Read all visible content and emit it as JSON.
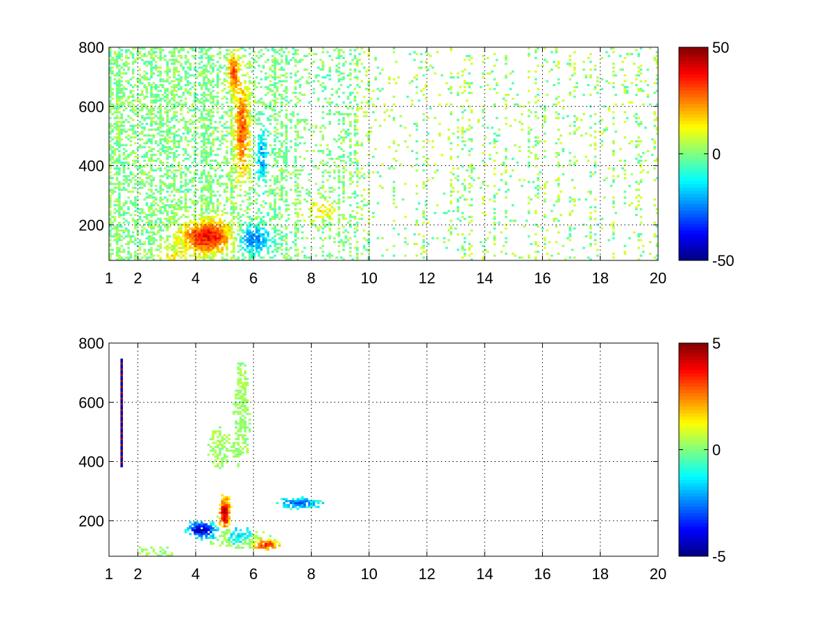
{
  "chart_data": [
    {
      "type": "heatmap",
      "title": "",
      "xlabel": "",
      "ylabel": "",
      "xlim": [
        1,
        20
      ],
      "ylim": [
        80,
        800
      ],
      "x_ticks": [
        "1",
        "2",
        "4",
        "6",
        "8",
        "10",
        "12",
        "14",
        "16",
        "18",
        "20"
      ],
      "x_tick_values": [
        1,
        2,
        4,
        6,
        8,
        10,
        12,
        14,
        16,
        18,
        20
      ],
      "y_ticks": [
        "200",
        "400",
        "600",
        "800"
      ],
      "y_tick_values": [
        200,
        400,
        600,
        800
      ],
      "grid": true,
      "colormap": "jet",
      "colorbar": {
        "min": -50,
        "max": 50,
        "ticks": [
          "50",
          "0",
          "-50"
        ],
        "tick_values": [
          50,
          0,
          -50
        ]
      },
      "features": [
        {
          "x": [
            3.4,
            5.0
          ],
          "y": [
            100,
            250
          ],
          "value": 35,
          "note": "positive band"
        },
        {
          "x": [
            5.3,
            5.8
          ],
          "y": [
            350,
            800
          ],
          "value": 30,
          "note": "positive ridge"
        },
        {
          "x": [
            5.2,
            7.0
          ],
          "y": [
            100,
            200
          ],
          "value": -25,
          "note": "negative band"
        },
        {
          "x": [
            6.0,
            6.6
          ],
          "y": [
            350,
            550
          ],
          "value": -20,
          "note": "negative patch"
        },
        {
          "x": [
            7.5,
            9.0
          ],
          "y": [
            220,
            300
          ],
          "value": 15,
          "note": "weak positive"
        }
      ]
    },
    {
      "type": "heatmap",
      "title": "",
      "xlabel": "",
      "ylabel": "",
      "xlim": [
        1,
        20
      ],
      "ylim": [
        80,
        800
      ],
      "x_ticks": [
        "1",
        "2",
        "4",
        "6",
        "8",
        "10",
        "12",
        "14",
        "16",
        "18",
        "20"
      ],
      "x_tick_values": [
        1,
        2,
        4,
        6,
        8,
        10,
        12,
        14,
        16,
        18,
        20
      ],
      "y_ticks": [
        "200",
        "400",
        "600",
        "800"
      ],
      "y_tick_values": [
        200,
        400,
        600,
        800
      ],
      "grid": true,
      "colormap": "jet",
      "colorbar": {
        "min": -5,
        "max": 5,
        "ticks": [
          "5",
          "0",
          "-5"
        ],
        "tick_values": [
          5,
          0,
          -5
        ]
      },
      "features": [
        {
          "x": [
            1.45,
            1.5
          ],
          "y": [
            380,
            750
          ],
          "value": 4,
          "note": "thin vertical line"
        },
        {
          "x": [
            3.6,
            4.6
          ],
          "y": [
            150,
            200
          ],
          "value": -4.5,
          "note": "blue cluster"
        },
        {
          "x": [
            4.8,
            5.2
          ],
          "y": [
            150,
            290
          ],
          "value": 4.5,
          "note": "red cluster"
        },
        {
          "x": [
            5.2,
            6.2
          ],
          "y": [
            380,
            770
          ],
          "value": 0.5,
          "note": "green ridge"
        },
        {
          "x": [
            6.0,
            7.2
          ],
          "y": [
            100,
            150
          ],
          "value": 3,
          "note": "mixed cluster"
        },
        {
          "x": [
            6.5,
            9.0
          ],
          "y": [
            220,
            290
          ],
          "value": -2,
          "note": "cyan scatter"
        }
      ]
    }
  ]
}
